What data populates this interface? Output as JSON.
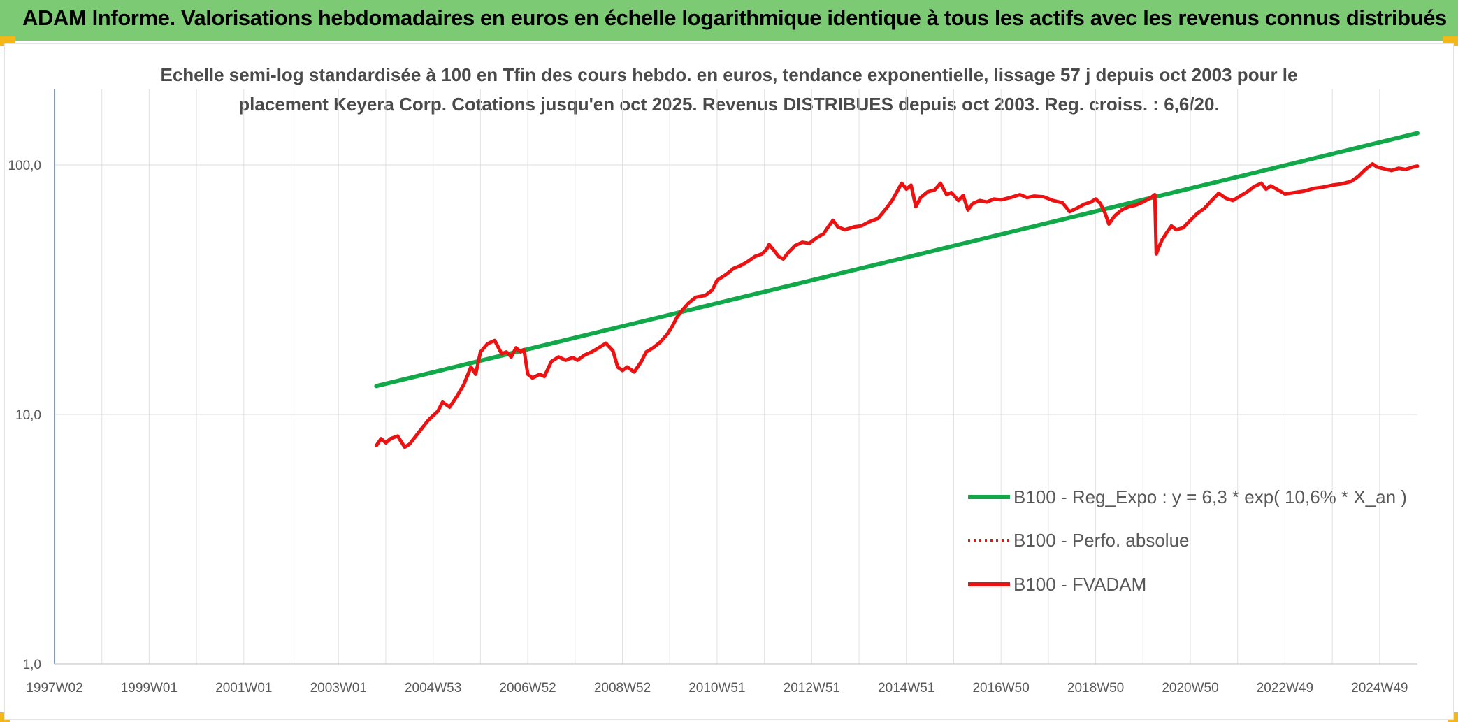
{
  "header": {
    "title": "ADAM Informe. Valorisations hebdomadaires en euros en échelle logarithmique identique à tous les actifs avec les revenus connus distribués"
  },
  "chart_data": {
    "type": "line",
    "title_lines": [
      "Echelle semi-log standardisée à 100 en Tfin des cours hebdo. en euros, tendance exponentielle, lissage 57 j depuis oct 2003 pour le",
      "placement Keyera Corp. Cotations jusqu'en oct 2025. Revenus DISTRIBUES depuis oct 2003. Reg. croiss. : 6,6/20."
    ],
    "y_scale": "log",
    "ylim": [
      1,
      200
    ],
    "y_ticks": [
      {
        "value": 1,
        "label": "1,0"
      },
      {
        "value": 10,
        "label": "10,0"
      },
      {
        "value": 100,
        "label": "100,0"
      }
    ],
    "x_ticks": [
      {
        "value": 1997.0,
        "label": "1997W02"
      },
      {
        "value": 1999.0,
        "label": "1999W01"
      },
      {
        "value": 2001.0,
        "label": "2001W01"
      },
      {
        "value": 2003.0,
        "label": "2003W01"
      },
      {
        "value": 2005.0,
        "label": "2004W53"
      },
      {
        "value": 2007.0,
        "label": "2006W52"
      },
      {
        "value": 2009.0,
        "label": "2008W52"
      },
      {
        "value": 2011.0,
        "label": "2010W51"
      },
      {
        "value": 2013.0,
        "label": "2012W51"
      },
      {
        "value": 2015.0,
        "label": "2014W51"
      },
      {
        "value": 2017.0,
        "label": "2016W50"
      },
      {
        "value": 2019.0,
        "label": "2018W50"
      },
      {
        "value": 2021.0,
        "label": "2020W50"
      },
      {
        "value": 2023.0,
        "label": "2022W49"
      },
      {
        "value": 2025.0,
        "label": "2024W49"
      }
    ],
    "xlim": [
      1997.0,
      2025.8
    ],
    "grid": "vertical and horizontal",
    "legend_position": "bottom-right",
    "series": [
      {
        "name": "B100 - Reg_Expo : y = 6,3 * exp( 10,6% *  X_an )",
        "color": "#11a84a",
        "style": "solid",
        "points": [
          [
            2003.8,
            13.0
          ],
          [
            2025.8,
            134.0
          ]
        ]
      },
      {
        "name": "B100 - Perfo. absolue",
        "color": "#ee1111",
        "style": "dotted",
        "points": []
      },
      {
        "name": "B100 - FVADAM",
        "color": "#ee1111",
        "style": "solid",
        "points": [
          [
            2003.8,
            7.5
          ],
          [
            2003.9,
            8.0
          ],
          [
            2004.0,
            7.7
          ],
          [
            2004.1,
            8.0
          ],
          [
            2004.25,
            8.2
          ],
          [
            2004.4,
            7.4
          ],
          [
            2004.5,
            7.6
          ],
          [
            2004.7,
            8.5
          ],
          [
            2004.9,
            9.5
          ],
          [
            2005.1,
            10.3
          ],
          [
            2005.2,
            11.2
          ],
          [
            2005.35,
            10.7
          ],
          [
            2005.5,
            11.8
          ],
          [
            2005.65,
            13.2
          ],
          [
            2005.8,
            15.5
          ],
          [
            2005.9,
            14.5
          ],
          [
            2006.0,
            17.8
          ],
          [
            2006.15,
            19.2
          ],
          [
            2006.3,
            19.8
          ],
          [
            2006.45,
            17.5
          ],
          [
            2006.55,
            17.8
          ],
          [
            2006.65,
            17.0
          ],
          [
            2006.75,
            18.5
          ],
          [
            2006.85,
            17.8
          ],
          [
            2006.92,
            18.2
          ],
          [
            2007.0,
            14.5
          ],
          [
            2007.1,
            14.0
          ],
          [
            2007.25,
            14.5
          ],
          [
            2007.35,
            14.2
          ],
          [
            2007.5,
            16.3
          ],
          [
            2007.65,
            17.0
          ],
          [
            2007.8,
            16.5
          ],
          [
            2007.95,
            16.9
          ],
          [
            2008.05,
            16.5
          ],
          [
            2008.2,
            17.3
          ],
          [
            2008.35,
            17.8
          ],
          [
            2008.5,
            18.5
          ],
          [
            2008.65,
            19.3
          ],
          [
            2008.8,
            18.0
          ],
          [
            2008.9,
            15.5
          ],
          [
            2009.0,
            15.0
          ],
          [
            2009.1,
            15.5
          ],
          [
            2009.25,
            14.8
          ],
          [
            2009.4,
            16.3
          ],
          [
            2009.5,
            17.8
          ],
          [
            2009.65,
            18.5
          ],
          [
            2009.8,
            19.5
          ],
          [
            2009.95,
            21.0
          ],
          [
            2010.05,
            22.5
          ],
          [
            2010.15,
            24.5
          ],
          [
            2010.25,
            26.0
          ],
          [
            2010.4,
            28.0
          ],
          [
            2010.55,
            29.5
          ],
          [
            2010.75,
            30.0
          ],
          [
            2010.9,
            31.5
          ],
          [
            2011.0,
            34.5
          ],
          [
            2011.2,
            36.5
          ],
          [
            2011.35,
            38.5
          ],
          [
            2011.5,
            39.5
          ],
          [
            2011.65,
            41.0
          ],
          [
            2011.8,
            43.0
          ],
          [
            2011.95,
            44.0
          ],
          [
            2012.05,
            46.0
          ],
          [
            2012.1,
            48.0
          ],
          [
            2012.2,
            45.5
          ],
          [
            2012.3,
            43.0
          ],
          [
            2012.4,
            42.0
          ],
          [
            2012.5,
            44.5
          ],
          [
            2012.65,
            47.5
          ],
          [
            2012.8,
            49.0
          ],
          [
            2012.95,
            48.5
          ],
          [
            2013.1,
            51.0
          ],
          [
            2013.25,
            53.0
          ],
          [
            2013.35,
            56.5
          ],
          [
            2013.45,
            60.0
          ],
          [
            2013.55,
            56.5
          ],
          [
            2013.7,
            55.0
          ],
          [
            2013.9,
            56.5
          ],
          [
            2014.05,
            57.0
          ],
          [
            2014.2,
            59.0
          ],
          [
            2014.4,
            61.0
          ],
          [
            2014.55,
            66.0
          ],
          [
            2014.7,
            72.0
          ],
          [
            2014.8,
            78.0
          ],
          [
            2014.9,
            84.5
          ],
          [
            2015.0,
            80.0
          ],
          [
            2015.1,
            83.0
          ],
          [
            2015.2,
            68.0
          ],
          [
            2015.3,
            74.0
          ],
          [
            2015.45,
            78.0
          ],
          [
            2015.6,
            79.5
          ],
          [
            2015.72,
            84.5
          ],
          [
            2015.85,
            76.0
          ],
          [
            2015.95,
            77.5
          ],
          [
            2016.1,
            72.0
          ],
          [
            2016.2,
            75.5
          ],
          [
            2016.3,
            66.0
          ],
          [
            2016.4,
            70.0
          ],
          [
            2016.55,
            72.0
          ],
          [
            2016.7,
            71.0
          ],
          [
            2016.85,
            73.0
          ],
          [
            2017.0,
            72.5
          ],
          [
            2017.2,
            74.0
          ],
          [
            2017.4,
            76.0
          ],
          [
            2017.55,
            74.0
          ],
          [
            2017.7,
            75.0
          ],
          [
            2017.9,
            74.5
          ],
          [
            2018.1,
            72.0
          ],
          [
            2018.3,
            70.5
          ],
          [
            2018.45,
            65.0
          ],
          [
            2018.6,
            67.0
          ],
          [
            2018.75,
            69.5
          ],
          [
            2018.9,
            71.0
          ],
          [
            2019.0,
            73.0
          ],
          [
            2019.1,
            70.0
          ],
          [
            2019.2,
            64.0
          ],
          [
            2019.28,
            58.0
          ],
          [
            2019.4,
            62.5
          ],
          [
            2019.55,
            66.0
          ],
          [
            2019.7,
            68.0
          ],
          [
            2019.85,
            69.0
          ],
          [
            2020.0,
            71.0
          ],
          [
            2020.15,
            73.5
          ],
          [
            2020.25,
            76.0
          ],
          [
            2020.28,
            44.0
          ],
          [
            2020.33,
            46.5
          ],
          [
            2020.4,
            50.0
          ],
          [
            2020.5,
            53.5
          ],
          [
            2020.6,
            57.0
          ],
          [
            2020.7,
            55.0
          ],
          [
            2020.85,
            56.0
          ],
          [
            2021.0,
            60.0
          ],
          [
            2021.15,
            64.0
          ],
          [
            2021.3,
            67.0
          ],
          [
            2021.45,
            72.0
          ],
          [
            2021.6,
            77.0
          ],
          [
            2021.75,
            73.5
          ],
          [
            2021.9,
            72.0
          ],
          [
            2022.05,
            75.0
          ],
          [
            2022.2,
            78.0
          ],
          [
            2022.35,
            82.0
          ],
          [
            2022.5,
            84.5
          ],
          [
            2022.6,
            80.0
          ],
          [
            2022.7,
            82.5
          ],
          [
            2022.85,
            79.5
          ],
          [
            2023.0,
            76.5
          ],
          [
            2023.2,
            77.5
          ],
          [
            2023.4,
            78.5
          ],
          [
            2023.6,
            80.5
          ],
          [
            2023.8,
            81.5
          ],
          [
            2024.0,
            83.0
          ],
          [
            2024.2,
            84.0
          ],
          [
            2024.4,
            86.0
          ],
          [
            2024.55,
            90.0
          ],
          [
            2024.7,
            96.0
          ],
          [
            2024.85,
            101.0
          ],
          [
            2024.95,
            98.0
          ],
          [
            2025.1,
            96.5
          ],
          [
            2025.25,
            95.0
          ],
          [
            2025.4,
            97.0
          ],
          [
            2025.55,
            96.0
          ],
          [
            2025.7,
            98.0
          ],
          [
            2025.8,
            99.0
          ]
        ]
      }
    ]
  }
}
